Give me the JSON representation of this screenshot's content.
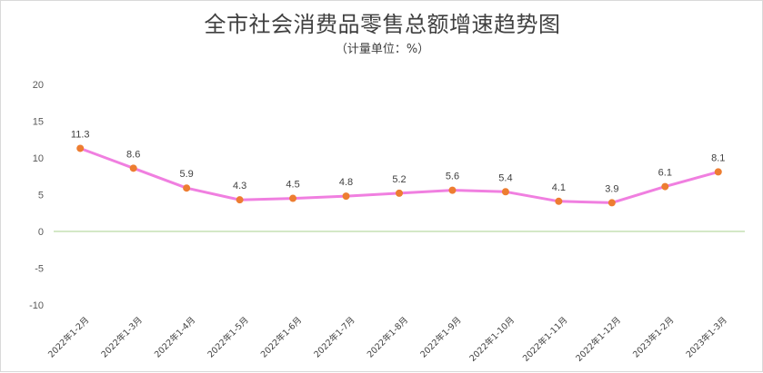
{
  "title": "全市社会消费品零售总额增速趋势图",
  "subtitle": "（计量单位：%）",
  "colors": {
    "line": "#f07fe0",
    "marker": "#ed7d31",
    "zero_line": "#a9d18e",
    "text": "#404040"
  },
  "chart_data": {
    "type": "line",
    "title": "全市社会消费品零售总额增速趋势图",
    "subtitle": "（计量单位：%）",
    "categories": [
      "2022年1-2月",
      "2022年1-3月",
      "2022年1-4月",
      "2022年1-5月",
      "2022年1-6月",
      "2022年1-7月",
      "2022年1-8月",
      "2022年1-9月",
      "2022年1-10月",
      "2022年1-11月",
      "2022年1-12月",
      "2023年1-2月",
      "2023年1-3月"
    ],
    "values": [
      11.3,
      8.6,
      5.9,
      4.3,
      4.5,
      4.8,
      5.2,
      5.6,
      5.4,
      4.1,
      3.9,
      6.1,
      8.1
    ],
    "data_labels": [
      "11.3",
      "8.6",
      "5.9",
      "4.3",
      "4.5",
      "4.8",
      "5.2",
      "5.6",
      "5.4",
      "4.1",
      "3.9",
      "6.1",
      "8.1"
    ],
    "ylim": [
      -10,
      20
    ],
    "yticks": [
      20,
      15,
      10,
      5,
      0,
      -5,
      -10
    ],
    "ytick_labels": [
      "20",
      "15",
      "10",
      "5",
      "0",
      "-5",
      "-10"
    ],
    "grid": false,
    "legend": "none"
  }
}
